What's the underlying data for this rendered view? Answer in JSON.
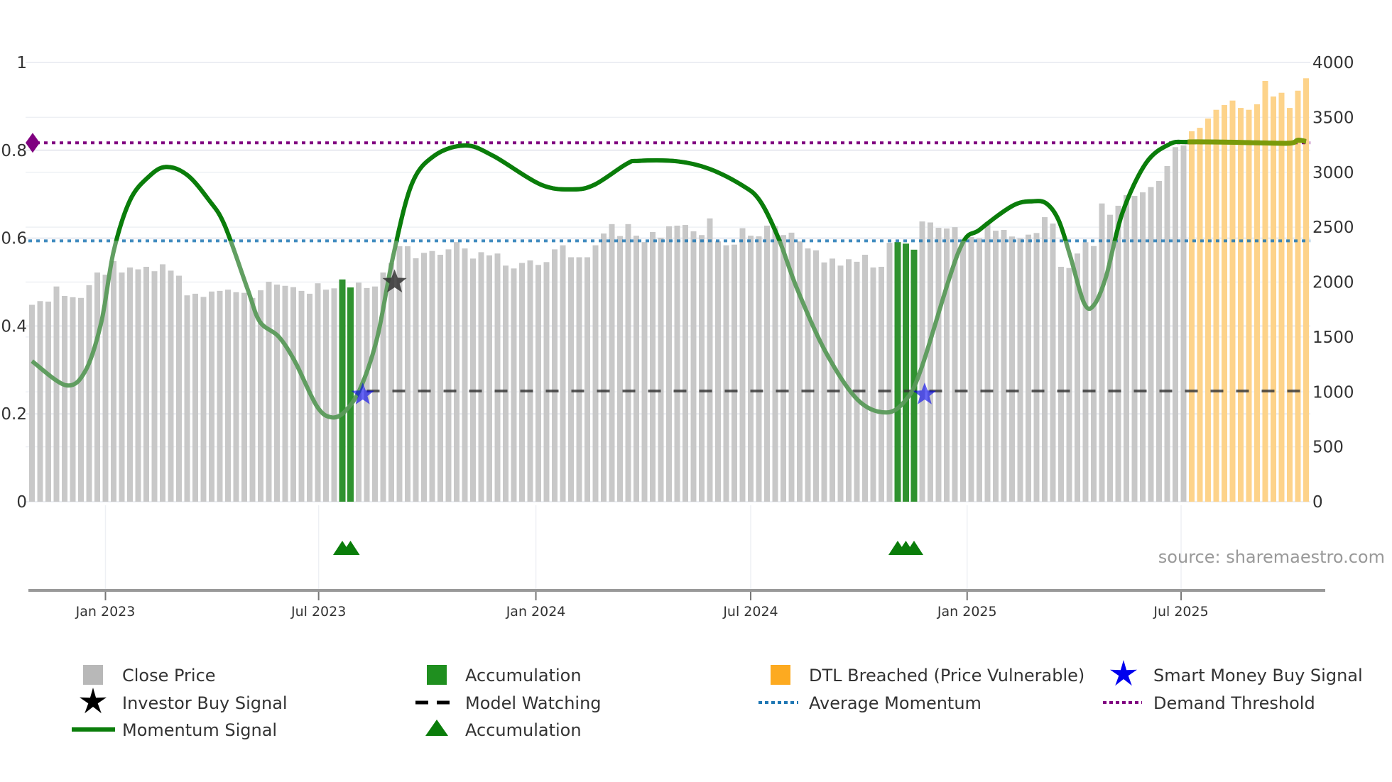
{
  "chart_data": {
    "type": "bar+line",
    "title": "",
    "y_left": {
      "range": [
        0,
        1
      ],
      "ticks": [
        0,
        0.2,
        0.4,
        0.6,
        0.8,
        1
      ],
      "tick_labels": [
        "0",
        "0.2",
        "0.4",
        "0.6",
        "0.8",
        "1"
      ]
    },
    "y_right": {
      "range": [
        0,
        4000
      ],
      "ticks": [
        0,
        500,
        1000,
        1500,
        2000,
        2500,
        3000,
        3500,
        4000
      ],
      "tick_labels": [
        "0",
        "500",
        "1000",
        "1500",
        "2000",
        "2500",
        "3000",
        "3500",
        "4000"
      ]
    },
    "x_ticks": [
      {
        "week": 9.0,
        "label": "Jan 2023"
      },
      {
        "week": 35.1,
        "label": "Jul 2023"
      },
      {
        "week": 61.7,
        "label": "Jan 2024"
      },
      {
        "week": 88.0,
        "label": "Jul 2024"
      },
      {
        "week": 114.5,
        "label": "Jan 2025"
      },
      {
        "week": 140.7,
        "label": "Jul 2025"
      }
    ],
    "grid": true,
    "close_price": [
      1793,
      1827,
      1822,
      1960,
      1874,
      1862,
      1856,
      1972,
      2087,
      2067,
      2191,
      2087,
      2133,
      2116,
      2139,
      2099,
      2162,
      2104,
      2058,
      1879,
      1894,
      1865,
      1914,
      1920,
      1931,
      1908,
      1902,
      1856,
      1925,
      2003,
      1977,
      1966,
      1954,
      1920,
      1894,
      1989,
      1931,
      1943,
      2024,
      1951,
      1995,
      1946,
      1960,
      2087,
      2174,
      2326,
      2326,
      2217,
      2266,
      2283,
      2249,
      2298,
      2364,
      2306,
      2214,
      2272,
      2243,
      2260,
      2150,
      2124,
      2174,
      2197,
      2156,
      2182,
      2298,
      2335,
      2226,
      2226,
      2226,
      2335,
      2442,
      2528,
      2419,
      2528,
      2422,
      2364,
      2456,
      2404,
      2508,
      2514,
      2520,
      2462,
      2428,
      2580,
      2370,
      2335,
      2341,
      2491,
      2422,
      2416,
      2514,
      2508,
      2428,
      2450,
      2370,
      2306,
      2289,
      2179,
      2214,
      2150,
      2208,
      2185,
      2249,
      2133,
      2139,
      2358,
      2364,
      2350,
      2295,
      2552,
      2543,
      2494,
      2488,
      2500,
      2389,
      2410,
      2397,
      2548,
      2468,
      2475,
      2415,
      2397,
      2432,
      2447,
      2591,
      2533,
      2139,
      2128,
      2260,
      2363,
      2328,
      2716,
      2613,
      2695,
      2792,
      2785,
      2817,
      2865,
      2921,
      3057,
      3229,
      3244,
      3373,
      3405,
      3489,
      3569,
      3612,
      3653,
      3586,
      3569,
      3619,
      3832,
      3690,
      3724,
      3586,
      3743,
      3856
    ],
    "accumulation_weeks": [
      38,
      39,
      106,
      107,
      108
    ],
    "dtl_breached_from_week": 142,
    "momentum": [
      [
        0,
        0.32
      ],
      [
        4.2,
        0.265
      ],
      [
        6.6,
        0.3
      ],
      [
        8.5,
        0.41
      ],
      [
        10,
        0.57
      ],
      [
        12,
        0.686
      ],
      [
        14.3,
        0.74
      ],
      [
        16.4,
        0.762
      ],
      [
        19,
        0.744
      ],
      [
        21.7,
        0.686
      ],
      [
        23.6,
        0.629
      ],
      [
        26.4,
        0.484
      ],
      [
        27.9,
        0.41
      ],
      [
        30.2,
        0.376
      ],
      [
        32.2,
        0.319
      ],
      [
        34.9,
        0.217
      ],
      [
        36.7,
        0.192
      ],
      [
        38.4,
        0.207
      ],
      [
        40.3,
        0.262
      ],
      [
        42.3,
        0.376
      ],
      [
        44.2,
        0.557
      ],
      [
        46.5,
        0.723
      ],
      [
        49.3,
        0.788
      ],
      [
        53.1,
        0.811
      ],
      [
        56.5,
        0.787
      ],
      [
        62.3,
        0.722
      ],
      [
        66.2,
        0.711
      ],
      [
        68.9,
        0.722
      ],
      [
        72.8,
        0.769
      ],
      [
        74.3,
        0.776
      ],
      [
        79,
        0.775
      ],
      [
        82.9,
        0.758
      ],
      [
        86.8,
        0.722
      ],
      [
        89.1,
        0.686
      ],
      [
        91.4,
        0.6
      ],
      [
        93.7,
        0.484
      ],
      [
        97.2,
        0.34
      ],
      [
        101.1,
        0.232
      ],
      [
        104.6,
        0.203
      ],
      [
        107,
        0.232
      ],
      [
        108.9,
        0.304
      ],
      [
        113.5,
        0.571
      ],
      [
        116.1,
        0.62
      ],
      [
        120.1,
        0.674
      ],
      [
        122.5,
        0.684
      ],
      [
        124.2,
        0.679
      ],
      [
        125.7,
        0.641
      ],
      [
        127.1,
        0.561
      ],
      [
        128.8,
        0.453
      ],
      [
        130,
        0.447
      ],
      [
        131.5,
        0.512
      ],
      [
        133.5,
        0.657
      ],
      [
        136.4,
        0.771
      ],
      [
        139.3,
        0.814
      ],
      [
        141.6,
        0.819
      ],
      [
        148,
        0.818
      ],
      [
        153.8,
        0.816
      ],
      [
        155,
        0.823
      ],
      [
        156,
        0.82
      ]
    ],
    "average_momentum": 0.594,
    "demand_threshold": 0.817,
    "model_watching": {
      "level": 0.252,
      "from_week": 41
    },
    "investor_buy_signals": [
      [
        44.4,
        0.5
      ]
    ],
    "smart_money_buy_signals": [
      [
        40.5,
        0.244
      ],
      [
        109.3,
        0.244
      ]
    ],
    "colors": {
      "close": "#c8c8c8",
      "accumulation": "#2f922f",
      "dtl": "#fdd38a",
      "momentum": "#0a7d0a",
      "momentum_below": "#5a9a5a",
      "average": "#1f77b4",
      "demand": "#800080",
      "smart_money": "#0000ee",
      "investor": "#111111"
    }
  },
  "source": "source: sharemaestro.com",
  "legend": {
    "close_price": "Close Price",
    "accumulation_bar": "Accumulation",
    "dtl_breached": "DTL Breached (Price Vulnerable)",
    "smart_money": "Smart Money Buy Signal",
    "investor_buy": "Investor Buy Signal",
    "model_watching": "Model Watching",
    "average_momentum": "Average Momentum",
    "demand_threshold": "Demand Threshold",
    "momentum_signal": "Momentum Signal",
    "accumulation_marker": "Accumulation"
  }
}
